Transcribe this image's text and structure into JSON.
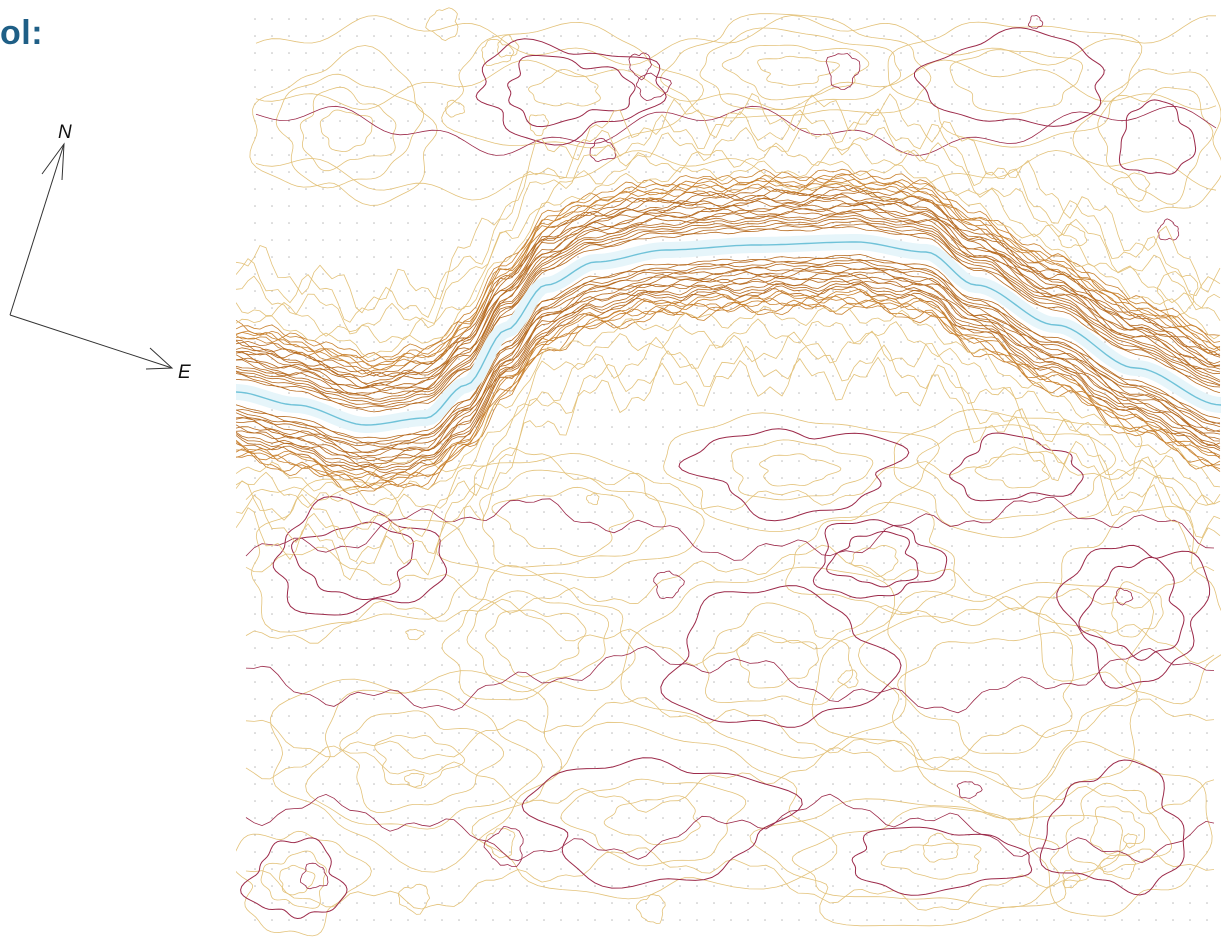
{
  "slide": {
    "title": "ol:"
  },
  "compass": {
    "north_label": "N",
    "east_label": "E",
    "icon": "north-arrow-icon"
  },
  "map": {
    "type": "contour-map",
    "colors": {
      "minor_contour": "#e3c27a",
      "mid_contour": "#c9822f",
      "dense_contour": "#b66a1f",
      "index_contour": "#9c2a4a",
      "channel_fill": "#e6f5fa",
      "channel_edge": "#6fc2d8",
      "grid_dots": "#b5b5b5",
      "title": "#1f5f86"
    }
  }
}
